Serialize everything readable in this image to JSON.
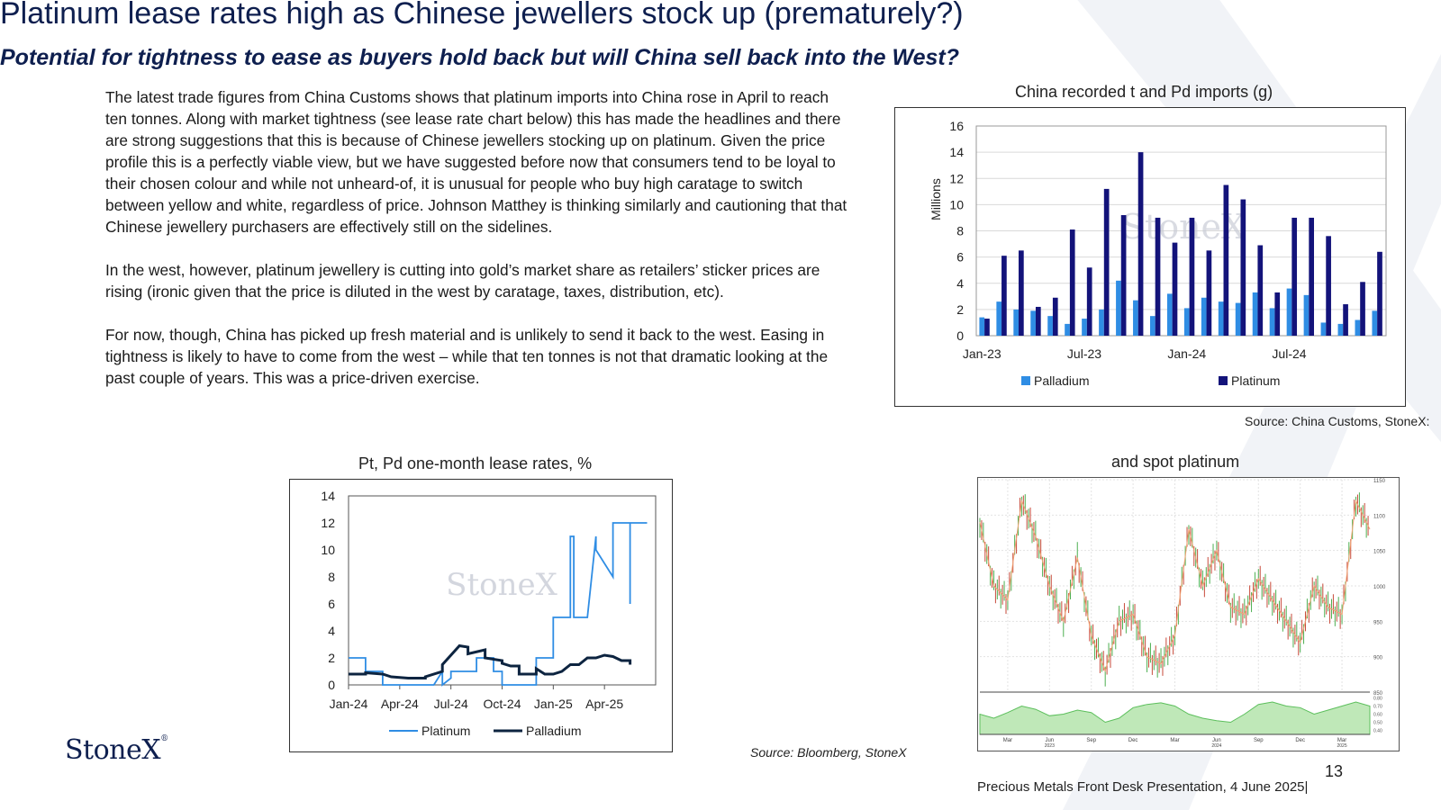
{
  "page": {
    "title": "Platinum lease rates high as Chinese jewellers stock up (prematurely?)",
    "subtitle": "Potential for tightness to ease as buyers hold back but will China sell back into the West?",
    "paragraphs": [
      "The latest trade figures from China Customs shows that platinum imports into China rose in April to reach ten tonnes.  Along with market tightness (see lease rate chart below) this has made the headlines and there are strong suggestions that this is because of Chinese jewellers stocking up on platinum.  Given the price profile this is a perfectly  viable view, but  we have suggested before now that consumers tend to be loyal to their chosen colour and while not unheard-of, it is unusual for people who buy high caratage to switch between yellow and white, regardless of price.  Johnson Matthey is thinking similarly and cautioning that that Chinese jewellery purchasers are effectively still on the sidelines.",
      "In the west, however, platinum jewellery is cutting into gold’s market share as retailers’ sticker prices are rising (ironic given that the price is diluted in the west by caratage, taxes, distribution, etc).",
      "For now, though, China has picked up fresh material and is unlikely to send it back to the west. Easing in tightness is likely to have to come from the west – while that ten tonnes is not that dramatic looking at the past couple of years.  This was a price-driven exercise."
    ],
    "logo_text": "StoneX",
    "page_number": "13",
    "footer": "Precious Metals Front Desk Presentation, 4 June 2025|",
    "colors": {
      "navy": "#0e1f4f",
      "platinum_bar": "#13137a",
      "palladium_bar": "#2f8de4",
      "lease_platinum": "#2f8de4",
      "lease_palladium": "#0d2440"
    }
  },
  "chart_data": [
    {
      "id": "imports",
      "type": "bar",
      "title": "China recorded t and Pd imports (g)",
      "ylabel": "Millions",
      "ylim": [
        0,
        16
      ],
      "yticks": [
        "0",
        "2",
        "4",
        "6",
        "8",
        "10",
        "12",
        "14",
        "16"
      ],
      "xtick_labels": [
        "Jan-23",
        "Jul-23",
        "Jan-24",
        "Jul-24"
      ],
      "xtick_index": [
        0,
        6,
        12,
        18
      ],
      "months": 24,
      "grid": true,
      "legend": "bottom",
      "watermark": "StoneX",
      "source": "Source: China Customs, StoneX:",
      "series": [
        {
          "name": "Palladium",
          "color": "#2f8de4",
          "values": [
            1.4,
            2.6,
            2.0,
            1.9,
            1.5,
            0.9,
            1.3,
            2.0,
            4.2,
            2.7,
            1.5,
            3.2,
            2.1,
            2.9,
            2.6,
            2.5,
            3.3,
            2.1,
            3.6,
            3.1,
            1.0,
            0.9,
            1.2,
            1.9
          ]
        },
        {
          "name": "Platinum",
          "color": "#13137a",
          "values": [
            1.3,
            6.1,
            6.5,
            2.2,
            2.9,
            8.1,
            5.2,
            11.2,
            9.2,
            14.0,
            9.0,
            7.1,
            9.0,
            6.5,
            11.5,
            10.4,
            6.9,
            3.3,
            9.0,
            9.0,
            7.6,
            2.4,
            4.1,
            6.4
          ]
        }
      ]
    },
    {
      "id": "lease",
      "type": "line",
      "title": "Pt, Pd one-month lease rates, %",
      "ylim": [
        0,
        14
      ],
      "yticks": [
        "0",
        "2",
        "4",
        "6",
        "8",
        "10",
        "12",
        "14"
      ],
      "xtick_labels": [
        "Jan-24",
        "Apr-24",
        "Jul-24",
        "Oct-24",
        "Jan-25",
        "Apr-25"
      ],
      "xtick_pos": [
        0,
        3,
        6,
        9,
        12,
        15
      ],
      "xlim": [
        0,
        18
      ],
      "legend": "bottom",
      "watermark": "StoneX",
      "source": "Source: Bloomberg, StoneX",
      "series": [
        {
          "name": "Platinum",
          "color": "#2f8de4",
          "x": [
            0.0,
            1.0,
            1.0,
            2.0,
            2.0,
            3.0,
            3.5,
            3.5,
            5.0,
            5.0,
            5.5,
            5.5,
            6.0,
            6.0,
            7.0,
            7.5,
            7.5,
            8.5,
            8.5,
            9.0,
            9.0,
            10.0,
            10.5,
            10.5,
            11.0,
            11.0,
            12.0,
            12.0,
            13.0,
            13.0,
            13.2,
            13.2,
            14.0,
            14.5,
            14.5,
            15.5,
            15.5,
            16.5,
            16.5,
            16.5,
            17.5
          ],
          "y": [
            2.0,
            2.0,
            1.0,
            1.0,
            0.0,
            0.0,
            0.0,
            0.0,
            0.0,
            0.0,
            1.0,
            0.0,
            0.5,
            1.0,
            1.0,
            1.0,
            2.0,
            2.0,
            1.0,
            1.0,
            0.0,
            0.0,
            0.0,
            0.0,
            0.0,
            2.0,
            2.0,
            5.0,
            5.0,
            11.0,
            11.0,
            5.0,
            5.0,
            11.0,
            10.0,
            8.0,
            12.0,
            12.0,
            6.0,
            12.0,
            12.0
          ]
        },
        {
          "name": "Palladium",
          "color": "#0d2440",
          "x": [
            0.0,
            1.0,
            1.0,
            2.0,
            2.5,
            3.5,
            4.5,
            4.5,
            5.5,
            5.5,
            6.5,
            7.0,
            7.0,
            8.0,
            8.0,
            9.0,
            9.0,
            9.5,
            10.0,
            10.0,
            11.0,
            11.0,
            11.5,
            12.0,
            12.5,
            13.0,
            13.5,
            14.0,
            14.5,
            15.0,
            15.5,
            16.0,
            16.5,
            16.5
          ],
          "y": [
            0.8,
            0.8,
            0.9,
            0.8,
            0.6,
            0.5,
            0.5,
            0.6,
            1.0,
            1.5,
            2.9,
            2.8,
            2.3,
            2.6,
            2.0,
            1.8,
            1.6,
            1.4,
            1.4,
            0.8,
            0.8,
            1.2,
            0.8,
            0.8,
            1.0,
            1.5,
            1.5,
            2.0,
            2.0,
            2.2,
            2.1,
            1.8,
            1.8,
            1.5
          ]
        }
      ]
    },
    {
      "id": "spot",
      "type": "line",
      "title": "and spot platinum",
      "ylim": [
        850,
        1150
      ],
      "yticks": [
        "850",
        "900",
        "950",
        "1000",
        "1050",
        "1100",
        "1150"
      ],
      "xtick_labels": [
        "Mar",
        "Jun",
        "Sep",
        "Dec",
        "Mar",
        "Jun",
        "Sep",
        "Dec",
        "Mar"
      ],
      "xtick_pos": [
        2,
        5,
        8,
        11,
        14,
        17,
        20,
        23,
        26
      ],
      "xlim": [
        0,
        28
      ],
      "year_labels": [
        "2023",
        "2024",
        "2025"
      ],
      "year_pos": [
        5,
        17,
        26
      ],
      "series": [
        {
          "name": "",
          "color": "#c74a3a",
          "x": [
            0,
            1,
            2,
            3,
            4,
            5,
            6,
            7,
            8,
            9,
            10,
            11,
            12,
            13,
            14,
            15,
            16,
            17,
            18,
            19,
            20,
            21,
            22,
            23,
            24,
            25,
            26,
            27,
            28
          ],
          "y": [
            1090,
            1000,
            980,
            1120,
            1070,
            1000,
            950,
            1040,
            930,
            880,
            950,
            960,
            900,
            890,
            930,
            1080,
            1000,
            1050,
            970,
            960,
            1010,
            980,
            950,
            920,
            1000,
            970,
            960,
            1120,
            1080
          ]
        }
      ],
      "lower_panel": {
        "yticks": [
          "0.40",
          "0.50",
          "0.60",
          "0.70",
          "0.80"
        ],
        "ylim": [
          0.35,
          0.85
        ],
        "values": [
          0.6,
          0.55,
          0.62,
          0.7,
          0.66,
          0.58,
          0.6,
          0.65,
          0.62,
          0.5,
          0.55,
          0.68,
          0.72,
          0.74,
          0.7,
          0.6,
          0.55,
          0.52,
          0.5,
          0.6,
          0.72,
          0.75,
          0.7,
          0.68,
          0.6,
          0.65,
          0.7,
          0.75,
          0.7
        ]
      }
    }
  ]
}
